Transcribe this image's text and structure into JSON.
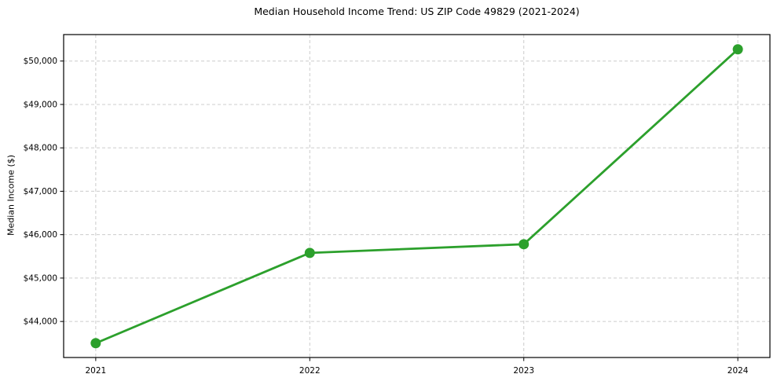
{
  "chart_data": {
    "type": "line",
    "title": "Median Household Income Trend: US ZIP Code 49829 (2021-2024)",
    "xlabel": "",
    "ylabel": "Median Income ($)",
    "x": [
      2021,
      2022,
      2023,
      2024
    ],
    "x_tick_labels": [
      "2021",
      "2022",
      "2023",
      "2024"
    ],
    "series": [
      {
        "name": "Median Household Income",
        "values": [
          43500,
          45580,
          45780,
          50270
        ]
      }
    ],
    "y_tick_values": [
      44000,
      45000,
      46000,
      47000,
      48000,
      49000,
      50000
    ],
    "y_tick_labels": [
      "$44,000",
      "$45,000",
      "$46,000",
      "$47,000",
      "$48,000",
      "$49,000",
      "$50,000"
    ],
    "xlim": [
      2020.85,
      2024.15
    ],
    "ylim": [
      43170,
      50610
    ],
    "grid": "dashed, both axes",
    "legend": "none",
    "colors": {
      "line": "#2ca02c",
      "marker": "#2ca02c",
      "grid": "#cccccc",
      "spine": "#000000",
      "text": "#000000",
      "background": "#ffffff"
    }
  }
}
